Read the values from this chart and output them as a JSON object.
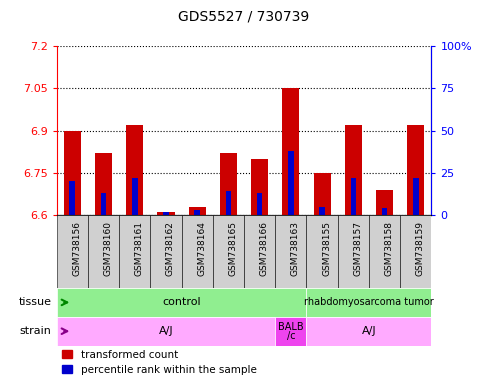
{
  "title": "GDS5527 / 730739",
  "samples": [
    "GSM738156",
    "GSM738160",
    "GSM738161",
    "GSM738162",
    "GSM738164",
    "GSM738165",
    "GSM738166",
    "GSM738163",
    "GSM738155",
    "GSM738157",
    "GSM738158",
    "GSM738159"
  ],
  "red_values": [
    6.9,
    6.82,
    6.92,
    6.61,
    6.63,
    6.82,
    6.8,
    7.05,
    6.75,
    6.92,
    6.69,
    6.92
  ],
  "blue_values": [
    20,
    13,
    22,
    2,
    3,
    14,
    13,
    38,
    5,
    22,
    4,
    22
  ],
  "y_min": 6.6,
  "y_max": 7.2,
  "y_ticks": [
    6.6,
    6.75,
    6.9,
    7.05,
    7.2
  ],
  "y_tick_labels": [
    "6.6",
    "6.75",
    "6.9",
    "7.05",
    "7.2"
  ],
  "y2_ticks": [
    0,
    25,
    50,
    75,
    100
  ],
  "y2_tick_labels": [
    "0",
    "25",
    "50",
    "75",
    "100%"
  ],
  "bar_base": 6.6,
  "bar_width": 0.55,
  "blue_bar_width": 0.18,
  "red_color": "#cc0000",
  "blue_color": "#0000cc",
  "tissue_groups": [
    {
      "label": "control",
      "start": 0,
      "end": 8,
      "color": "#90ee90",
      "fontsize": 8
    },
    {
      "label": "rhabdomyosarcoma tumor",
      "start": 8,
      "end": 12,
      "color": "#90ee90",
      "fontsize": 7
    }
  ],
  "strain_groups": [
    {
      "label": "A/J",
      "start": 0,
      "end": 7,
      "color": "#ffaaff",
      "fontsize": 8
    },
    {
      "label": "BALB\n/c",
      "start": 7,
      "end": 8,
      "color": "#ee44ee",
      "fontsize": 7
    },
    {
      "label": "A/J",
      "start": 8,
      "end": 12,
      "color": "#ffaaff",
      "fontsize": 8
    }
  ],
  "plot_bg": "#ffffff",
  "legend_red": "transformed count",
  "legend_blue": "percentile rank within the sample"
}
